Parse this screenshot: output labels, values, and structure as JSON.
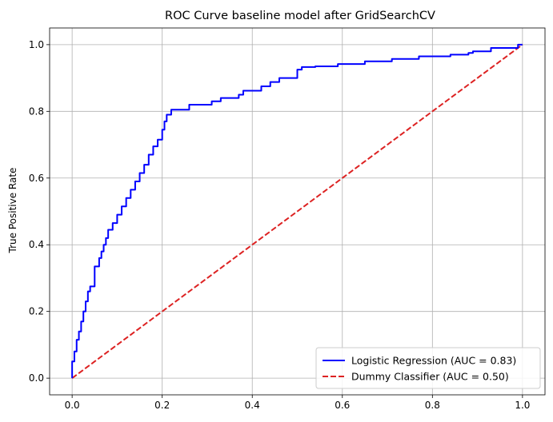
{
  "chart_data": {
    "type": "line",
    "title": "ROC Curve baseline model after GridSearchCV",
    "xlabel": "",
    "ylabel": "True Positive Rate",
    "xlim": [
      -0.05,
      1.05
    ],
    "ylim": [
      -0.05,
      1.05
    ],
    "xticks": [
      "0.0",
      "0.2",
      "0.4",
      "0.6",
      "0.8",
      "1.0"
    ],
    "yticks": [
      "0.0",
      "0.2",
      "0.4",
      "0.6",
      "0.8",
      "1.0"
    ],
    "grid": true,
    "legend_position": "lower-right",
    "series": [
      {
        "name": "Logistic Regression (AUC = 0.83)",
        "color": "#0000ff",
        "style": "solid",
        "x": [
          0.0,
          0.0,
          0.005,
          0.005,
          0.01,
          0.01,
          0.015,
          0.015,
          0.02,
          0.02,
          0.025,
          0.025,
          0.03,
          0.03,
          0.035,
          0.035,
          0.04,
          0.04,
          0.05,
          0.05,
          0.06,
          0.06,
          0.065,
          0.065,
          0.07,
          0.07,
          0.075,
          0.075,
          0.08,
          0.08,
          0.09,
          0.09,
          0.1,
          0.1,
          0.11,
          0.11,
          0.12,
          0.12,
          0.13,
          0.13,
          0.14,
          0.14,
          0.15,
          0.15,
          0.16,
          0.16,
          0.17,
          0.17,
          0.18,
          0.18,
          0.19,
          0.19,
          0.2,
          0.2,
          0.205,
          0.205,
          0.21,
          0.21,
          0.22,
          0.22,
          0.26,
          0.26,
          0.31,
          0.31,
          0.33,
          0.33,
          0.37,
          0.37,
          0.38,
          0.38,
          0.42,
          0.42,
          0.44,
          0.44,
          0.46,
          0.46,
          0.5,
          0.5,
          0.51,
          0.51,
          0.54,
          0.54,
          0.59,
          0.59,
          0.65,
          0.65,
          0.71,
          0.71,
          0.77,
          0.77,
          0.84,
          0.84,
          0.88,
          0.88,
          0.89,
          0.89,
          0.93,
          0.93,
          0.99,
          0.99,
          1.0
        ],
        "y": [
          0.0,
          0.05,
          0.05,
          0.08,
          0.08,
          0.115,
          0.115,
          0.14,
          0.14,
          0.17,
          0.17,
          0.2,
          0.2,
          0.23,
          0.23,
          0.26,
          0.26,
          0.275,
          0.275,
          0.335,
          0.335,
          0.36,
          0.36,
          0.38,
          0.38,
          0.4,
          0.4,
          0.42,
          0.42,
          0.445,
          0.445,
          0.465,
          0.465,
          0.49,
          0.49,
          0.515,
          0.515,
          0.54,
          0.54,
          0.565,
          0.565,
          0.59,
          0.59,
          0.615,
          0.615,
          0.64,
          0.64,
          0.67,
          0.67,
          0.695,
          0.695,
          0.715,
          0.715,
          0.745,
          0.745,
          0.77,
          0.77,
          0.79,
          0.79,
          0.805,
          0.805,
          0.82,
          0.82,
          0.83,
          0.83,
          0.84,
          0.84,
          0.85,
          0.85,
          0.862,
          0.862,
          0.875,
          0.875,
          0.888,
          0.888,
          0.9,
          0.9,
          0.925,
          0.925,
          0.933,
          0.933,
          0.935,
          0.935,
          0.942,
          0.942,
          0.95,
          0.95,
          0.957,
          0.957,
          0.965,
          0.965,
          0.97,
          0.97,
          0.975,
          0.975,
          0.98,
          0.98,
          0.99,
          0.99,
          1.0,
          1.0
        ]
      },
      {
        "name": "Dummy Classifier (AUC = 0.50)",
        "color": "#dd2222",
        "style": "dashed",
        "x": [
          0.0,
          1.0
        ],
        "y": [
          0.0,
          1.0
        ]
      }
    ]
  }
}
